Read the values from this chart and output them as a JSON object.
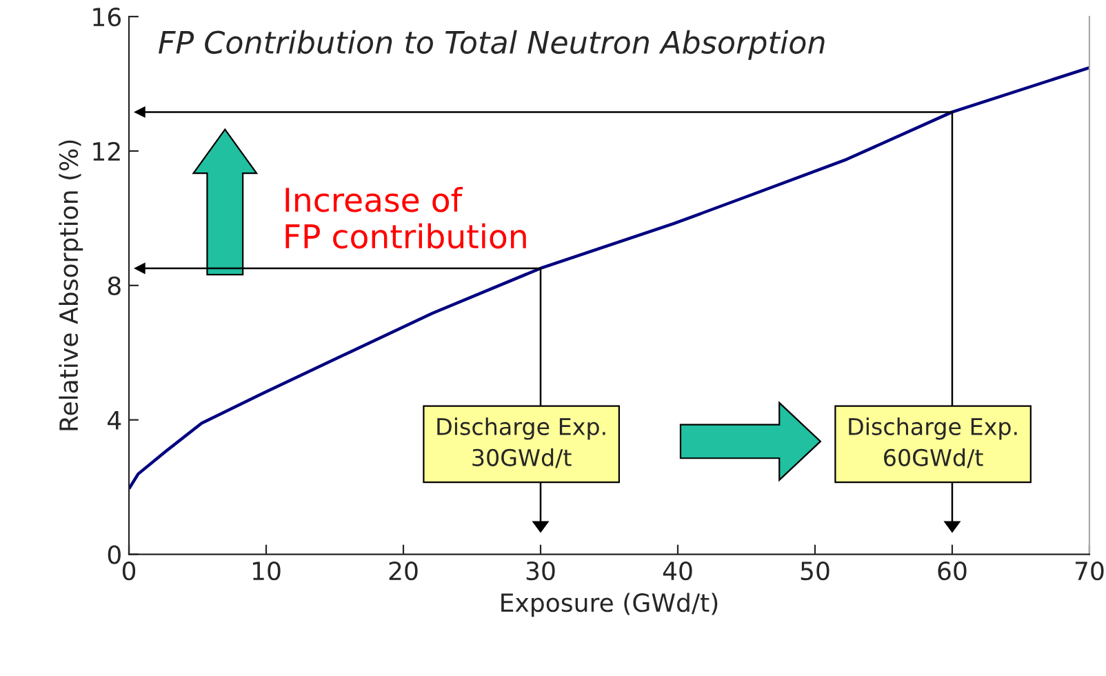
{
  "chart_data": {
    "type": "line",
    "title": "FP Contribution to Total Neutron Absorption",
    "xlabel": "Exposure (GWd/t)",
    "ylabel": "Relative Absorption (%)",
    "x": [
      0.05,
      0.67,
      2.7,
      5.3,
      9.7,
      15.4,
      22.1,
      30,
      39.7,
      45.6,
      52.3,
      60,
      70
    ],
    "series": [
      {
        "color": "#000080",
        "values": [
          1.98,
          2.39,
          3.07,
          3.9,
          4.78,
          5.88,
          7.17,
          8.51,
          9.84,
          10.73,
          11.75,
          13.16,
          14.48
        ]
      }
    ],
    "xlim": [
      0,
      70
    ],
    "ylim": [
      0,
      16
    ],
    "xticks": [
      0,
      10,
      20,
      30,
      40,
      50,
      60,
      70
    ],
    "yticks": [
      0,
      4,
      8,
      12,
      16
    ],
    "grid": false,
    "annotations": [
      "Increase of\nFP contribution",
      "Discharge Exp.\n30GWd/t",
      "Discharge Exp.\n60GWd/t"
    ],
    "ref_lines": [
      {
        "axis": "y",
        "value": 8.51,
        "color": "#000000"
      },
      {
        "axis": "y",
        "value": 13.16,
        "color": "#000000"
      },
      {
        "axis": "x",
        "value": 30,
        "color": "#000000"
      },
      {
        "axis": "x",
        "value": 60,
        "color": "#000000"
      }
    ]
  }
}
